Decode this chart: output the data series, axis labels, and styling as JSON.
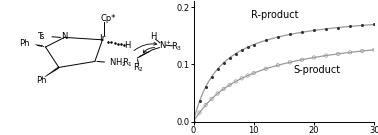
{
  "background_color": "#ffffff",
  "plot_xlim": [
    0,
    30
  ],
  "plot_ylim": [
    0,
    0.21
  ],
  "x_ticks": [
    0,
    10,
    20,
    30
  ],
  "y_ticks": [
    0,
    0.1,
    0.2
  ],
  "r_label": "R-product",
  "s_label": "S-product",
  "r_data_x": [
    0,
    1,
    2,
    3,
    4,
    5,
    6,
    7,
    8,
    9,
    10,
    12,
    14,
    16,
    18,
    20,
    22,
    24,
    26,
    28,
    30
  ],
  "s_data_x": [
    0,
    1,
    2,
    3,
    4,
    5,
    6,
    7,
    8,
    9,
    10,
    12,
    14,
    16,
    18,
    20,
    22,
    24,
    26,
    28,
    30
  ],
  "r_vmax": 0.195,
  "r_km": 4.5,
  "s_vmax": 0.165,
  "s_km": 9.5,
  "line_color": "#999999",
  "marker_color_r": "#333333",
  "marker_color_s": "#999999",
  "label_fontsize": 7,
  "tick_fontsize": 6,
  "chem_fontsize": 6.0
}
